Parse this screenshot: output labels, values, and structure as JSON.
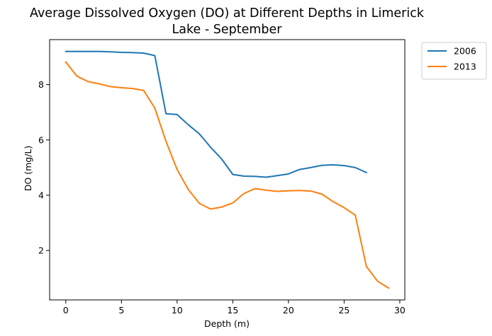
{
  "chart_data": {
    "type": "line",
    "title_line1": "Average Dissolved Oxygen (DO) at Different Depths in Limerick",
    "title_line2": "Lake - September",
    "xlabel": "Depth (m)",
    "ylabel": "DO (mg/L)",
    "xlim": [
      -1.45,
      30.45
    ],
    "ylim": [
      0.21,
      9.63
    ],
    "xticks": [
      0,
      5,
      10,
      15,
      20,
      25,
      30
    ],
    "yticks": [
      2,
      4,
      6,
      8
    ],
    "grid": false,
    "legend_position": "outside-top-right",
    "series": [
      {
        "name": "2006",
        "color": "#1f77b4",
        "x": [
          0,
          1,
          2,
          3,
          4,
          5,
          6,
          7,
          8,
          9,
          10,
          11,
          12,
          13,
          14,
          15,
          16,
          17,
          18,
          19,
          20,
          21,
          22,
          23,
          24,
          25,
          26,
          27
        ],
        "y": [
          9.2,
          9.2,
          9.2,
          9.2,
          9.19,
          9.17,
          9.16,
          9.14,
          9.05,
          6.95,
          6.92,
          6.55,
          6.22,
          5.74,
          5.31,
          4.75,
          4.69,
          4.68,
          4.65,
          4.71,
          4.77,
          4.93,
          5.0,
          5.08,
          5.1,
          5.07,
          5.0,
          4.82
        ]
      },
      {
        "name": "2013",
        "color": "#ff7f0e",
        "x": [
          0,
          1,
          2,
          3,
          4,
          5,
          6,
          7,
          8,
          9,
          10,
          11,
          12,
          13,
          14,
          15,
          16,
          17,
          18,
          19,
          20,
          21,
          22,
          23,
          24,
          25,
          26,
          27,
          28,
          29
        ],
        "y": [
          8.82,
          8.31,
          8.11,
          8.03,
          7.93,
          7.89,
          7.86,
          7.79,
          7.15,
          5.95,
          4.93,
          4.21,
          3.7,
          3.5,
          3.57,
          3.72,
          4.06,
          4.24,
          4.18,
          4.14,
          4.16,
          4.17,
          4.15,
          4.04,
          3.77,
          3.55,
          3.28,
          1.42,
          0.89,
          0.64
        ]
      }
    ]
  }
}
